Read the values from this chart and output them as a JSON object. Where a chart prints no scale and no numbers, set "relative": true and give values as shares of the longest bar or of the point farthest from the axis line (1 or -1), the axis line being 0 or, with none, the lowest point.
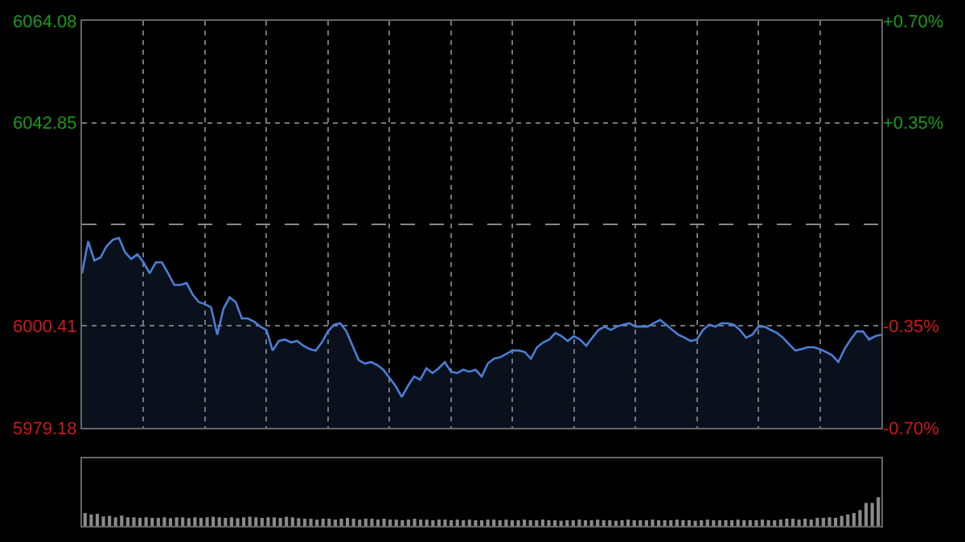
{
  "chart_data": [
    {
      "type": "area",
      "categories": [
        null,
        null,
        null,
        null,
        null,
        null,
        null,
        null,
        null,
        null,
        null,
        null,
        null,
        null,
        null,
        null,
        null,
        null,
        null,
        null,
        null,
        null,
        null,
        null,
        null,
        null,
        null,
        null,
        null,
        null,
        null,
        null,
        null,
        null,
        null,
        null,
        null,
        null,
        null,
        null,
        null,
        null,
        null,
        null,
        null,
        null,
        null,
        null,
        null,
        null,
        null,
        null,
        null,
        null,
        null,
        null,
        null,
        null,
        null,
        null,
        null,
        null,
        null,
        null,
        null,
        null,
        null,
        null,
        null,
        null,
        null,
        null,
        null,
        null,
        null,
        null,
        null,
        null,
        null,
        null,
        null,
        null,
        null,
        null,
        null,
        null,
        null,
        null,
        null,
        null,
        null,
        null,
        null,
        null,
        null,
        null,
        null,
        null,
        null,
        null,
        null,
        null,
        null,
        null,
        null,
        null,
        null,
        null,
        null,
        null,
        null,
        null,
        null,
        null,
        null,
        null,
        null,
        null,
        null,
        null,
        null,
        null,
        null,
        null,
        null,
        null,
        null,
        null,
        null,
        null,
        null
      ],
      "series": [
        {
          "color": "#4a7fd6",
          "values": [
            6011.4,
            6018.1,
            6014.1,
            6014.7,
            6017.1,
            6018.4,
            6018.8,
            6015.8,
            6014.4,
            6015.4,
            6013.7,
            6011.4,
            6013.7,
            6013.7,
            6011.4,
            6009.0,
            6009.0,
            6009.4,
            6007.0,
            6005.4,
            6005.0,
            6004.3,
            5998.6,
            6004.0,
            6006.4,
            6005.4,
            6002.0,
            6002.0,
            6001.3,
            6000.3,
            5999.6,
            5995.3,
            5997.3,
            5997.6,
            5997.0,
            5997.3,
            5996.3,
            5995.6,
            5995.3,
            5997.0,
            5999.3,
            6000.7,
            6001.0,
            5999.3,
            5996.3,
            5993.3,
            5992.6,
            5992.9,
            5992.3,
            5991.3,
            5989.6,
            5987.9,
            5985.6,
            5987.9,
            5989.9,
            5989.2,
            5991.6,
            5990.6,
            5991.6,
            5992.9,
            5990.9,
            5990.6,
            5991.3,
            5990.9,
            5991.3,
            5989.9,
            5992.6,
            5993.6,
            5993.9,
            5994.6,
            5995.3,
            5995.3,
            5995.0,
            5993.6,
            5996.0,
            5997.0,
            5997.6,
            5999.0,
            5998.3,
            5997.3,
            5998.3,
            5997.6,
            5996.3,
            5998.0,
            5999.6,
            6000.3,
            5999.6,
            6000.3,
            6000.7,
            6001.0,
            6000.3,
            6000.3,
            6000.3,
            6001.0,
            6001.7,
            6000.7,
            5999.6,
            5998.6,
            5998.0,
            5997.3,
            5997.6,
            5999.6,
            6000.7,
            6000.3,
            6001.0,
            6001.0,
            6000.7,
            5999.6,
            5998.0,
            5998.6,
            6000.3,
            6000.3,
            5999.6,
            5999.0,
            5998.0,
            5996.6,
            5995.3,
            5995.6,
            5996.0,
            5996.0,
            5995.6,
            5995.0,
            5994.3,
            5992.9,
            5995.6,
            5997.6,
            5999.3,
            5999.3,
            5997.6,
            5998.3,
            5998.6
          ]
        }
      ],
      "ylim": [
        5979.18,
        6064.08
      ],
      "yticks": [
        5979.18,
        6000.41,
        6042.85,
        6064.08
      ],
      "y2lim": [
        -0.7,
        0.7
      ],
      "y2ticks": [
        {
          "value": 0.7,
          "label": "+0.70%"
        },
        {
          "value": 0.35,
          "label": "+0.35%"
        },
        {
          "value": -0.35,
          "label": "-0.35%"
        },
        {
          "value": -0.7,
          "label": "-0.70%"
        }
      ],
      "ref_lines": [
        {
          "axis": "y",
          "value": 6021.63,
          "color": "#888888",
          "line_style": "dashed"
        }
      ],
      "grid": true,
      "tick_labels": "y"
    },
    {
      "type": "bar",
      "relative": true,
      "categories": [
        null,
        null,
        null,
        null,
        null,
        null,
        null,
        null,
        null,
        null,
        null,
        null,
        null,
        null,
        null,
        null,
        null,
        null,
        null,
        null,
        null,
        null,
        null,
        null,
        null,
        null,
        null,
        null,
        null,
        null,
        null,
        null,
        null,
        null,
        null,
        null,
        null,
        null,
        null,
        null,
        null,
        null,
        null,
        null,
        null,
        null,
        null,
        null,
        null,
        null,
        null,
        null,
        null,
        null,
        null,
        null,
        null,
        null,
        null,
        null,
        null,
        null,
        null,
        null,
        null,
        null,
        null,
        null,
        null,
        null,
        null,
        null,
        null,
        null,
        null,
        null,
        null,
        null,
        null,
        null,
        null,
        null,
        null,
        null,
        null,
        null,
        null,
        null,
        null,
        null,
        null,
        null,
        null,
        null,
        null,
        null,
        null,
        null,
        null,
        null,
        null,
        null,
        null,
        null,
        null,
        null,
        null,
        null,
        null,
        null,
        null,
        null,
        null,
        null,
        null,
        null,
        null,
        null,
        null,
        null,
        null,
        null,
        null,
        null,
        null,
        null,
        null,
        null,
        null,
        null,
        null
      ],
      "series": [
        {
          "color": "#8a8a8a",
          "values": [
            0.45,
            0.4,
            0.42,
            0.33,
            0.35,
            0.3,
            0.36,
            0.3,
            0.3,
            0.28,
            0.3,
            0.28,
            0.28,
            0.3,
            0.27,
            0.3,
            0.3,
            0.27,
            0.3,
            0.28,
            0.3,
            0.32,
            0.3,
            0.28,
            0.3,
            0.27,
            0.3,
            0.32,
            0.3,
            0.28,
            0.3,
            0.3,
            0.28,
            0.32,
            0.3,
            0.27,
            0.25,
            0.25,
            0.22,
            0.25,
            0.25,
            0.22,
            0.25,
            0.28,
            0.25,
            0.22,
            0.25,
            0.25,
            0.22,
            0.25,
            0.22,
            0.22,
            0.2,
            0.22,
            0.25,
            0.22,
            0.22,
            0.2,
            0.22,
            0.22,
            0.2,
            0.22,
            0.2,
            0.22,
            0.2,
            0.2,
            0.22,
            0.22,
            0.2,
            0.22,
            0.2,
            0.2,
            0.22,
            0.2,
            0.2,
            0.22,
            0.2,
            0.2,
            0.18,
            0.2,
            0.2,
            0.22,
            0.2,
            0.2,
            0.22,
            0.2,
            0.2,
            0.18,
            0.2,
            0.22,
            0.2,
            0.2,
            0.2,
            0.22,
            0.2,
            0.2,
            0.2,
            0.22,
            0.2,
            0.2,
            0.18,
            0.2,
            0.22,
            0.2,
            0.2,
            0.2,
            0.2,
            0.22,
            0.2,
            0.2,
            0.2,
            0.22,
            0.2,
            0.2,
            0.22,
            0.25,
            0.25,
            0.22,
            0.25,
            0.22,
            0.28,
            0.28,
            0.3,
            0.28,
            0.35,
            0.4,
            0.45,
            0.55,
            0.8,
            0.8,
            1
          ]
        }
      ]
    }
  ]
}
